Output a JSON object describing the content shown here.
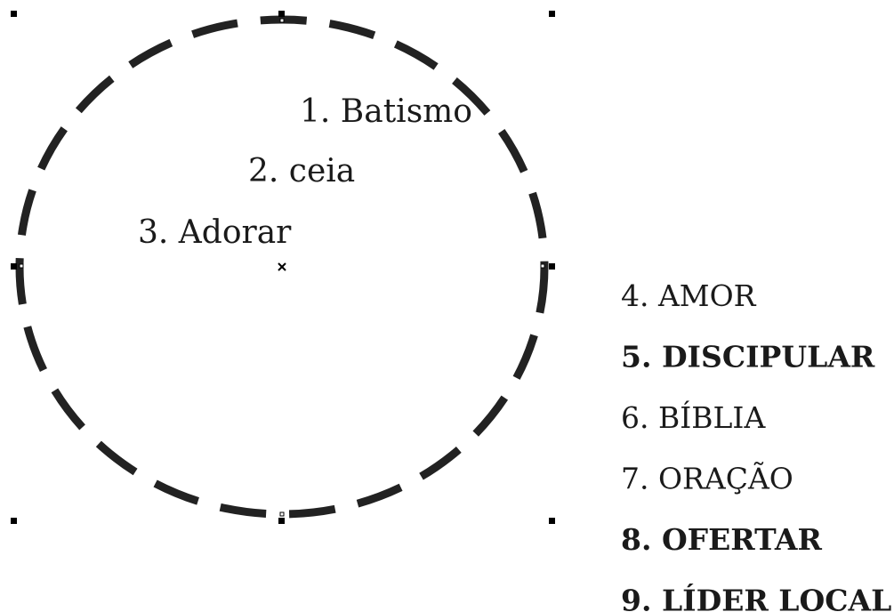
{
  "circle_labels": [
    "1. Batismo",
    "2. ceia",
    "3. Adorar"
  ],
  "list_items": [
    {
      "text": "4. AMOR",
      "bold": false
    },
    {
      "text": "5. DISCIPULAR",
      "bold": true
    },
    {
      "text": "6. BÍBLIA",
      "bold": false
    },
    {
      "text": "7. ORAÇÃO",
      "bold": false
    },
    {
      "text": "8. OFERTAR",
      "bold": true
    },
    {
      "text": "9. LÍDER LOCAL",
      "bold": true
    }
  ]
}
